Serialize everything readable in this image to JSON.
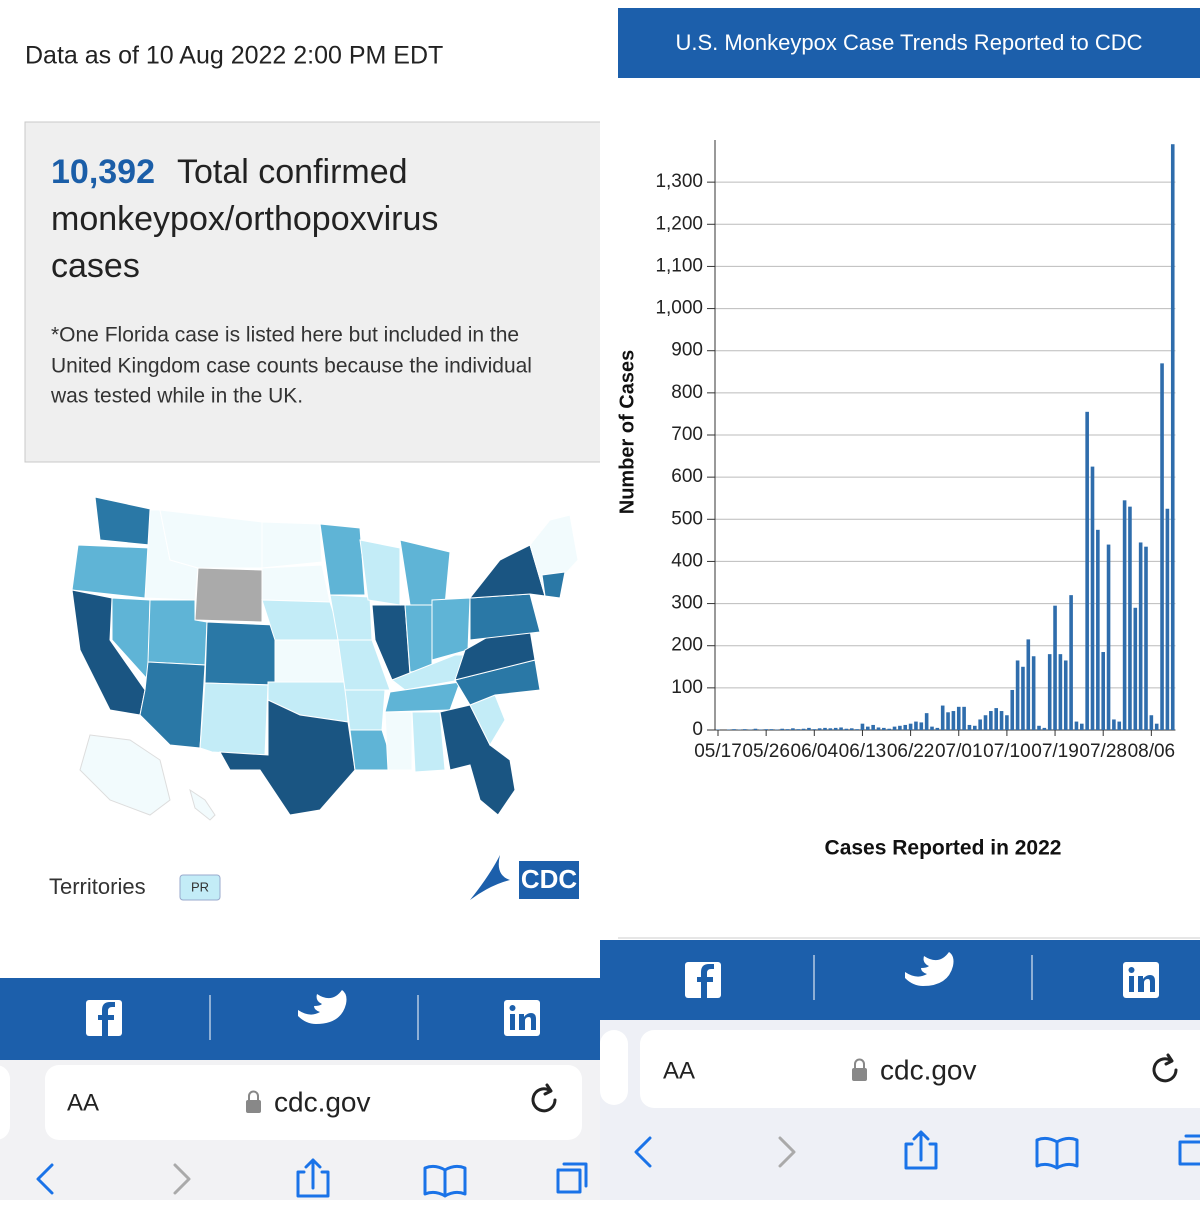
{
  "left": {
    "data_as_of": "Data as of 10 Aug 2022 2:00 PM EDT",
    "headline": {
      "number": "10,392",
      "lines": [
        "Total confirmed",
        "monkeypox/orthopoxvirus",
        "cases"
      ]
    },
    "note_lines": [
      "*One Florida case is listed here but included in the",
      "United Kingdom case counts because the individual",
      "was tested while in the UK."
    ],
    "territories": "Territories",
    "territory_button": "PR",
    "logo_text": "CDC",
    "browser": {
      "text_size": "AA",
      "url": "cdc.gov"
    }
  },
  "right": {
    "browser": {
      "text_size": "AA",
      "url": "cdc.gov"
    }
  },
  "chart_data": {
    "type": "bar",
    "title": "U.S. Monkeypox Case Trends Reported to CDC",
    "x_label": "Cases Reported in 2022",
    "y_label": "Number of Cases",
    "color": "#2f6dac",
    "grid": true,
    "categories": [
      "05/17",
      null,
      null,
      null,
      null,
      null,
      null,
      null,
      null,
      "05/26",
      null,
      null,
      null,
      null,
      null,
      null,
      null,
      null,
      "06/04",
      null,
      null,
      null,
      null,
      null,
      null,
      null,
      null,
      "06/13",
      null,
      null,
      null,
      null,
      null,
      null,
      null,
      null,
      "06/22",
      null,
      null,
      null,
      null,
      null,
      null,
      null,
      null,
      "07/01",
      null,
      null,
      null,
      null,
      null,
      null,
      null,
      null,
      "07/10",
      null,
      null,
      null,
      null,
      null,
      null,
      null,
      null,
      "07/19",
      null,
      null,
      null,
      null,
      null,
      null,
      null,
      null,
      "07/28",
      null,
      null,
      null,
      null,
      null,
      null,
      null,
      null,
      "08/06",
      null,
      null,
      null,
      null
    ],
    "values": [
      1,
      0,
      1,
      2,
      1,
      2,
      1,
      3,
      1,
      2,
      2,
      1,
      3,
      2,
      4,
      2,
      3,
      5,
      2,
      4,
      5,
      4,
      5,
      6,
      3,
      4,
      2,
      15,
      8,
      12,
      6,
      5,
      3,
      8,
      10,
      12,
      15,
      20,
      18,
      40,
      8,
      5,
      58,
      42,
      45,
      55,
      55,
      12,
      10,
      25,
      35,
      45,
      52,
      45,
      35,
      95,
      165,
      150,
      215,
      175,
      10,
      5,
      180,
      295,
      180,
      165,
      320,
      20,
      15,
      755,
      625,
      475,
      185,
      440,
      25,
      20,
      545,
      530,
      290,
      445,
      435,
      35,
      15,
      870,
      525,
      1390
    ],
    "ylim": [
      0,
      1400
    ],
    "yticks": [
      0,
      100,
      200,
      300,
      400,
      500,
      600,
      700,
      800,
      900,
      {
        "value": 1000,
        "label": "1,000"
      },
      {
        "value": 1100,
        "label": "1,100"
      },
      {
        "value": 1200,
        "label": "1,200"
      },
      {
        "value": 1300,
        "label": "1,300"
      }
    ]
  }
}
